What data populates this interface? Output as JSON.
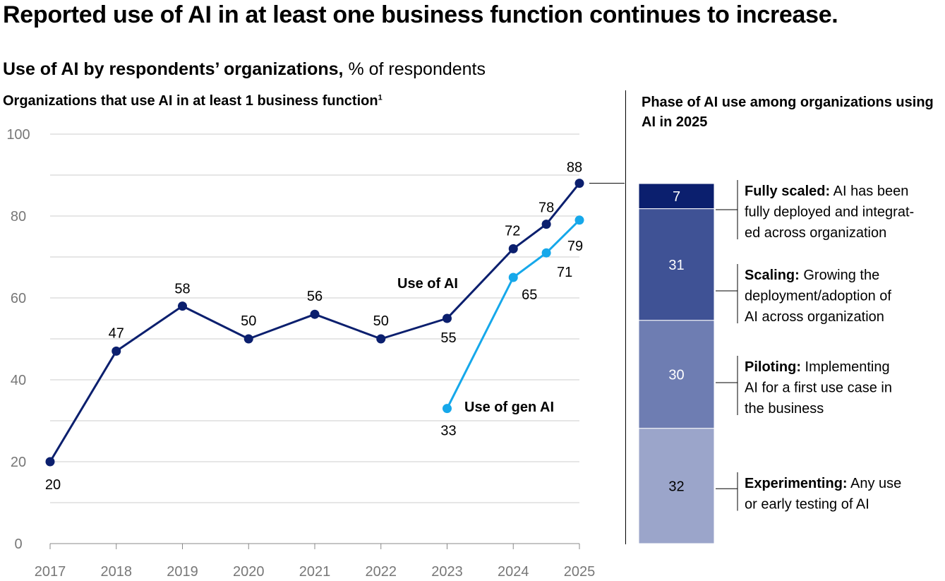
{
  "title": "Reported use of AI in at least one business function continues to increase.",
  "subtitle": {
    "bold": "Use of AI by respondents’ organizations,",
    "normal": "% of respondents"
  },
  "left_heading": {
    "text": "Organizations that use AI in at least 1 business function",
    "footnote": "1"
  },
  "right_heading": "Phase of AI use among organizations using AI in 2025",
  "colors": {
    "ai_line": "#0b1f6e",
    "gen_ai_line": "#16a8ea",
    "grid": "#cccccc",
    "axis_text": "#777777",
    "segments": [
      "#0b1f6e",
      "#3f5295",
      "#6e7db2",
      "#9ba5ca"
    ]
  },
  "chart_data": [
    {
      "type": "line",
      "title": "Organizations that use AI in at least 1 business function",
      "ylim": [
        0,
        100
      ],
      "y_ticks": [
        0,
        20,
        40,
        60,
        80,
        100
      ],
      "x_ticks": [
        "2017",
        "2018",
        "2019",
        "2020",
        "2021",
        "2022",
        "2023",
        "2024",
        "2025"
      ],
      "grid": true,
      "series": [
        {
          "name": "Use of AI",
          "x": [
            2017,
            2018,
            2019,
            2020,
            2021,
            2022,
            2023,
            2024,
            2024.5,
            2025
          ],
          "values": [
            20,
            47,
            58,
            50,
            56,
            50,
            55,
            72,
            78,
            88
          ],
          "labels": [
            "20",
            "47",
            "58",
            "50",
            "56",
            "50",
            "55",
            "72",
            "78",
            "88"
          ]
        },
        {
          "name": "Use of gen AI",
          "x": [
            2023,
            2024,
            2024.5,
            2025
          ],
          "values": [
            33,
            65,
            71,
            79
          ],
          "labels": [
            "33",
            "65",
            "71",
            "79"
          ]
        }
      ]
    },
    {
      "type": "bar",
      "stacked": true,
      "title": "Phase of AI use among organizations using AI in 2025",
      "segments": [
        {
          "name": "Fully scaled",
          "value": 7,
          "label": "7",
          "desc_bold": "Fully scaled:",
          "desc_lines": [
            " AI has been",
            "fully deployed and integrat-",
            "ed across organization"
          ]
        },
        {
          "name": "Scaling",
          "value": 31,
          "label": "31",
          "desc_bold": "Scaling:",
          "desc_lines": [
            " Growing the",
            "deployment/adoption of",
            "AI across organization"
          ]
        },
        {
          "name": "Piloting",
          "value": 30,
          "label": "30",
          "desc_bold": "Piloting:",
          "desc_lines": [
            " Implementing",
            "AI for a first use case in",
            "the business"
          ]
        },
        {
          "name": "Experimenting",
          "value": 32,
          "label": "32",
          "desc_bold": "Experimenting:",
          "desc_lines": [
            " Any use",
            "or early testing of AI"
          ]
        }
      ]
    }
  ]
}
